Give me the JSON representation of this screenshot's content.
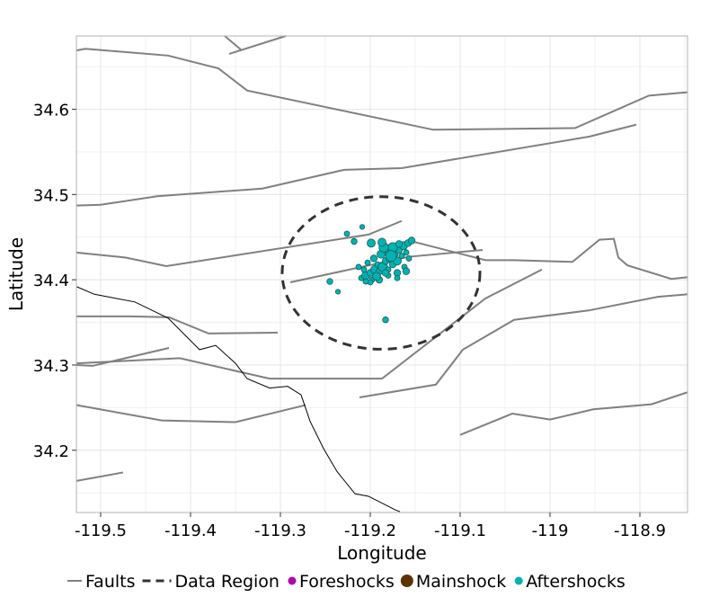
{
  "chart_data": {
    "type": "scatter",
    "xlabel": "Longitude",
    "ylabel": "Latitude",
    "xlim": [
      -119.527,
      -118.847
    ],
    "ylim": [
      34.127,
      34.686
    ],
    "xticks": [
      -119.5,
      -119.4,
      -119.3,
      -119.2,
      -119.1,
      -119.0,
      -118.9
    ],
    "xtick_labels": [
      "-119.5",
      "-119.4",
      "-119.3",
      "-119.2",
      "-119.1",
      "-119",
      "-118.9"
    ],
    "yticks": [
      34.2,
      34.3,
      34.4,
      34.5,
      34.6
    ],
    "ytick_labels": [
      "34.2",
      "34.3",
      "34.4",
      "34.5",
      "34.6"
    ],
    "grid": true,
    "legend_placement": "bottom",
    "legend": [
      {
        "label": "Faults",
        "kind": "line",
        "color": "#808080"
      },
      {
        "label": "Data Region",
        "kind": "dashed",
        "color": "#333333"
      },
      {
        "label": "Foreshocks",
        "kind": "point",
        "color": "#b300b3"
      },
      {
        "label": "Mainshock",
        "kind": "point",
        "color": "#5c3300"
      },
      {
        "label": "Aftershocks",
        "kind": "point",
        "color": "#00b3b3"
      }
    ],
    "faults": [
      [
        [
          -119.527,
          34.669
        ],
        [
          -119.517,
          34.671
        ],
        [
          -119.425,
          34.663
        ],
        [
          -119.369,
          34.648
        ],
        [
          -119.337,
          34.622
        ],
        [
          -119.13,
          34.576
        ],
        [
          -118.972,
          34.578
        ],
        [
          -118.89,
          34.616
        ],
        [
          -118.847,
          34.62
        ]
      ],
      [
        [
          -119.362,
          34.686
        ],
        [
          -119.344,
          34.67
        ]
      ],
      [
        [
          -119.357,
          34.665
        ],
        [
          -119.294,
          34.686
        ]
      ],
      [
        [
          -119.527,
          34.487
        ],
        [
          -119.5,
          34.488
        ],
        [
          -119.437,
          34.498
        ],
        [
          -119.32,
          34.507
        ],
        [
          -119.229,
          34.529
        ],
        [
          -119.165,
          34.531
        ],
        [
          -118.956,
          34.568
        ],
        [
          -118.904,
          34.582
        ]
      ],
      [
        [
          -119.527,
          34.432
        ],
        [
          -119.472,
          34.426
        ],
        [
          -119.427,
          34.416
        ],
        [
          -119.202,
          34.453
        ],
        [
          -119.165,
          34.469
        ]
      ],
      [
        [
          -119.289,
          34.397
        ],
        [
          -119.157,
          34.427
        ],
        [
          -119.075,
          34.435
        ]
      ],
      [
        [
          -119.157,
          34.446
        ],
        [
          -119.072,
          34.423
        ],
        [
          -119.04,
          34.423
        ],
        [
          -118.975,
          34.421
        ],
        [
          -118.945,
          34.447
        ],
        [
          -118.929,
          34.448
        ],
        [
          -118.924,
          34.426
        ],
        [
          -118.914,
          34.417
        ],
        [
          -118.865,
          34.401
        ],
        [
          -118.847,
          34.403
        ]
      ],
      [
        [
          -119.527,
          34.357
        ],
        [
          -119.467,
          34.357
        ],
        [
          -119.424,
          34.356
        ],
        [
          -119.38,
          34.337
        ],
        [
          -119.303,
          34.338
        ]
      ],
      [
        [
          -119.527,
          34.3
        ],
        [
          -119.509,
          34.299
        ],
        [
          -119.424,
          34.32
        ]
      ],
      [
        [
          -119.527,
          34.302
        ],
        [
          -119.412,
          34.308
        ],
        [
          -119.312,
          34.284
        ],
        [
          -119.187,
          34.284
        ],
        [
          -119.072,
          34.378
        ],
        [
          -119.009,
          34.412
        ]
      ],
      [
        [
          -119.212,
          34.262
        ],
        [
          -119.127,
          34.277
        ],
        [
          -119.097,
          34.318
        ],
        [
          -119.04,
          34.353
        ],
        [
          -118.957,
          34.364
        ],
        [
          -118.88,
          34.38
        ],
        [
          -118.847,
          34.383
        ]
      ],
      [
        [
          -119.527,
          34.253
        ],
        [
          -119.432,
          34.235
        ],
        [
          -119.35,
          34.233
        ],
        [
          -119.272,
          34.253
        ]
      ],
      [
        [
          -119.1,
          34.218
        ],
        [
          -119.042,
          34.243
        ],
        [
          -119.0,
          34.236
        ],
        [
          -118.952,
          34.248
        ],
        [
          -118.887,
          34.254
        ],
        [
          -118.847,
          34.268
        ]
      ],
      [
        [
          -119.527,
          34.164
        ],
        [
          -119.475,
          34.174
        ]
      ]
    ],
    "coastline": [
      [
        -119.527,
        34.392
      ],
      [
        -119.507,
        34.383
      ],
      [
        -119.462,
        34.374
      ],
      [
        -119.425,
        34.355
      ],
      [
        -119.39,
        34.318
      ],
      [
        -119.372,
        34.323
      ],
      [
        -119.35,
        34.302
      ],
      [
        -119.337,
        34.284
      ],
      [
        -119.312,
        34.273
      ],
      [
        -119.292,
        34.275
      ],
      [
        -119.277,
        34.265
      ],
      [
        -119.267,
        34.234
      ],
      [
        -119.252,
        34.202
      ],
      [
        -119.237,
        34.175
      ],
      [
        -119.217,
        34.149
      ],
      [
        -119.202,
        34.146
      ],
      [
        -119.172,
        34.13
      ],
      [
        -119.167,
        34.128
      ]
    ],
    "data_region": {
      "center": [
        -119.188,
        34.408
      ],
      "radius_lon": 0.11,
      "radius_lat": 0.0895
    },
    "aftershocks": [
      [
        -119.21,
        34.402,
        2
      ],
      [
        -119.205,
        34.405,
        3
      ],
      [
        -119.2,
        34.408,
        2.5
      ],
      [
        -119.207,
        34.412,
        2
      ],
      [
        -119.198,
        34.4,
        2
      ],
      [
        -119.195,
        34.412,
        3
      ],
      [
        -119.19,
        34.41,
        2.5
      ],
      [
        -119.192,
        34.418,
        2
      ],
      [
        -119.186,
        34.415,
        3.5
      ],
      [
        -119.183,
        34.422,
        2.5
      ],
      [
        -119.18,
        34.412,
        2
      ],
      [
        -119.178,
        34.425,
        3
      ],
      [
        -119.175,
        34.418,
        2.5
      ],
      [
        -119.172,
        34.43,
        2
      ],
      [
        -119.17,
        34.422,
        3
      ],
      [
        -119.168,
        34.435,
        2.5
      ],
      [
        -119.165,
        34.428,
        2
      ],
      [
        -119.163,
        34.44,
        3
      ],
      [
        -119.16,
        34.432,
        2
      ],
      [
        -119.158,
        34.443,
        2.5
      ],
      [
        -119.213,
        34.415,
        2
      ],
      [
        -119.203,
        34.42,
        2
      ],
      [
        -119.196,
        34.425,
        2.5
      ],
      [
        -119.188,
        34.43,
        3
      ],
      [
        -119.181,
        34.433,
        2
      ],
      [
        -119.175,
        34.438,
        3.5
      ],
      [
        -119.168,
        34.442,
        2.5
      ],
      [
        -119.2,
        34.397,
        2
      ],
      [
        -119.19,
        34.4,
        2.5
      ],
      [
        -119.18,
        34.405,
        2
      ],
      [
        -119.17,
        34.408,
        2.5
      ],
      [
        -119.162,
        34.415,
        2
      ],
      [
        -119.157,
        34.425,
        2
      ],
      [
        -119.185,
        34.438,
        3.5
      ],
      [
        -119.177,
        34.428,
        4
      ],
      [
        -119.193,
        34.404,
        3
      ],
      [
        -119.205,
        34.398,
        2
      ],
      [
        -119.183,
        34.408,
        2.5
      ],
      [
        -119.17,
        34.402,
        2
      ],
      [
        -119.16,
        34.41,
        2.5
      ],
      [
        -119.226,
        34.454,
        2
      ],
      [
        -119.209,
        34.462,
        1.8
      ],
      [
        -119.218,
        34.445,
        2.2
      ],
      [
        -119.245,
        34.398,
        2.2
      ],
      [
        -119.236,
        34.386,
        1.8
      ],
      [
        -119.183,
        34.353,
        2.2
      ],
      [
        -119.199,
        34.443,
        3
      ],
      [
        -119.187,
        34.444,
        3
      ],
      [
        -119.154,
        34.446,
        2.5
      ]
    ],
    "foreshocks": [],
    "mainshock": []
  }
}
